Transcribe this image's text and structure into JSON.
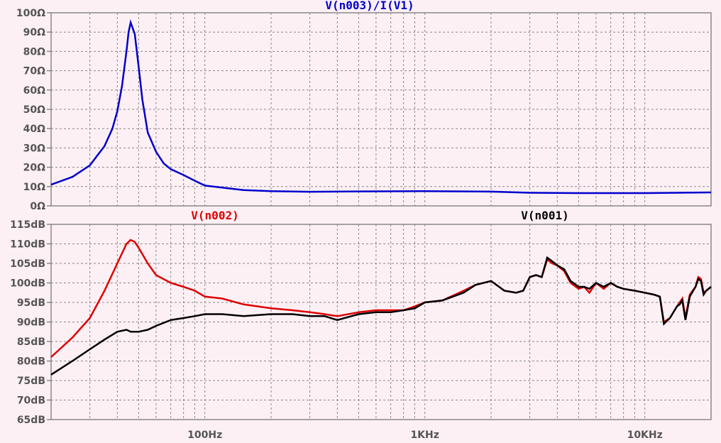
{
  "chart_data": [
    {
      "type": "line",
      "title": "V(n003)/I(V1)",
      "x_scale": "log",
      "xlim": [
        20,
        20000
      ],
      "ylim": [
        0,
        100
      ],
      "y_ticks": [
        "0Ω",
        "10Ω",
        "20Ω",
        "30Ω",
        "40Ω",
        "50Ω",
        "60Ω",
        "70Ω",
        "80Ω",
        "90Ω",
        "100Ω"
      ],
      "grid": true,
      "series": [
        {
          "name": "V(n003)/I(V1)",
          "color": "#0000cc",
          "x": [
            20,
            25,
            30,
            35,
            38,
            40,
            42,
            44,
            45,
            46,
            48,
            50,
            52,
            55,
            60,
            65,
            70,
            80,
            90,
            100,
            120,
            150,
            200,
            300,
            500,
            1000,
            2000,
            3000,
            5000,
            10000,
            20000
          ],
          "y": [
            11,
            15,
            21,
            31,
            40,
            49,
            62,
            80,
            90,
            95,
            89,
            72,
            55,
            38,
            28,
            22,
            19,
            16,
            13,
            10.5,
            9.5,
            8.2,
            7.6,
            7.3,
            7.5,
            7.6,
            7.4,
            6.8,
            6.6,
            6.6,
            7
          ]
        }
      ]
    },
    {
      "type": "line",
      "title": "",
      "x_scale": "log",
      "xlim": [
        20,
        20000
      ],
      "ylim": [
        65,
        115
      ],
      "y_ticks": [
        "65dB",
        "70dB",
        "75dB",
        "80dB",
        "85dB",
        "90dB",
        "95dB",
        "100dB",
        "105dB",
        "110dB",
        "115dB"
      ],
      "x_ticks": [
        "100Hz",
        "1KHz",
        "10KHz"
      ],
      "grid": true,
      "series": [
        {
          "name": "V(n002)",
          "color": "#dd0000",
          "x": [
            20,
            25,
            30,
            35,
            40,
            44,
            46,
            48,
            50,
            55,
            60,
            70,
            80,
            90,
            100,
            120,
            150,
            200,
            250,
            300,
            350,
            400,
            500,
            600,
            700,
            800,
            900,
            1000,
            1200,
            1500,
            1700,
            2000,
            2300,
            2600,
            2800,
            3000,
            3200,
            3400,
            3600,
            3800,
            4000,
            4300,
            4600,
            5000,
            5300,
            5600,
            6000,
            6500,
            7000,
            7500,
            8000,
            9000,
            10000,
            11000,
            11700,
            12200,
            13000,
            14000,
            14400,
            14800,
            15300,
            16000,
            17000,
            17500,
            18000,
            18500,
            19000,
            20000
          ],
          "y": [
            81,
            86,
            91,
            98,
            105,
            110,
            111,
            110.5,
            109,
            105,
            102,
            100,
            99,
            98,
            96.5,
            96,
            94.5,
            93.5,
            93,
            92.5,
            92,
            91.5,
            92.5,
            93,
            93,
            93,
            94,
            95,
            95.5,
            98,
            99.5,
            100.5,
            98,
            97.5,
            98,
            101.5,
            102,
            101.5,
            106,
            105,
            104.5,
            103,
            100,
            98.5,
            99,
            97.5,
            100,
            98.5,
            100,
            99,
            98.5,
            98,
            97.5,
            97,
            96.5,
            90,
            91,
            94,
            95,
            96,
            91,
            97,
            99,
            101.5,
            101,
            97.5,
            98,
            99
          ]
        },
        {
          "name": "V(n001)",
          "color": "#000000",
          "x": [
            20,
            25,
            30,
            35,
            40,
            44,
            46,
            48,
            50,
            55,
            60,
            70,
            80,
            90,
            100,
            120,
            150,
            200,
            250,
            300,
            350,
            400,
            500,
            600,
            700,
            800,
            900,
            1000,
            1200,
            1500,
            1700,
            2000,
            2300,
            2600,
            2800,
            3000,
            3200,
            3400,
            3600,
            3800,
            4000,
            4300,
            4600,
            5000,
            5300,
            5600,
            6000,
            6500,
            7000,
            7500,
            8000,
            9000,
            10000,
            11000,
            11700,
            12200,
            13000,
            14000,
            14400,
            14800,
            15300,
            16000,
            17000,
            17500,
            18000,
            18500,
            19000,
            20000
          ],
          "y": [
            76.5,
            80,
            83,
            85.5,
            87.5,
            88,
            87.5,
            87.5,
            87.5,
            88,
            89,
            90.5,
            91,
            91.5,
            92,
            92,
            91.5,
            92,
            92,
            91.5,
            91.5,
            90.5,
            92,
            92.5,
            92.5,
            93,
            93.5,
            95,
            95.5,
            97.5,
            99.5,
            100.5,
            98,
            97.5,
            98,
            101.5,
            102,
            101.5,
            106.5,
            105.5,
            104.5,
            103.5,
            100.5,
            99,
            99,
            98.5,
            100,
            99,
            100,
            99,
            98.5,
            98,
            97.5,
            97,
            96.5,
            89.5,
            91,
            94,
            94.5,
            95.5,
            90.5,
            96.5,
            99,
            101,
            100.5,
            97,
            98,
            99
          ]
        }
      ],
      "labels": [
        "V(n002)",
        "V(n001)"
      ]
    }
  ]
}
